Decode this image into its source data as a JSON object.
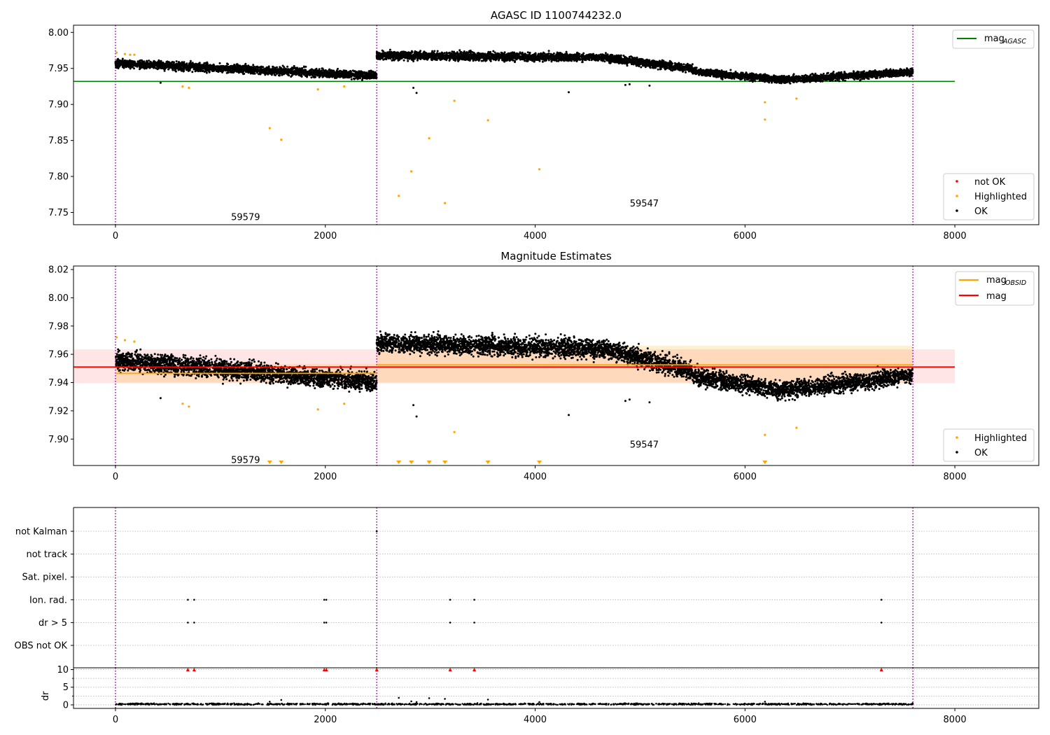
{
  "figure": {
    "background": "#ffffff"
  },
  "colors": {
    "ok": "#000000",
    "highlighted": "#ffa500",
    "not_ok": "#ff0000",
    "agasc_line": "#008000",
    "obsid_line": "#ffa500",
    "mag_line": "#ff0000",
    "obsid_band": "#ffa500",
    "mag_band": "#ff0000",
    "obs_boundary": "#800080",
    "grid": "#b0b0b0"
  },
  "chart_data": [
    {
      "type": "scatter",
      "title": "AGASC ID 1100744232.0",
      "xlim": [
        -400,
        8800
      ],
      "ylim": [
        7.733,
        8.01
      ],
      "xticks": [
        0,
        2000,
        4000,
        6000,
        8000
      ],
      "yticks": [
        7.75,
        7.8,
        7.85,
        7.9,
        7.95,
        8.0
      ],
      "ytick_labels": [
        "7.75",
        "7.80",
        "7.85",
        "7.90",
        "7.95",
        "8.00"
      ],
      "obs_boundaries": [
        0,
        2490,
        7600
      ],
      "annotations": [
        {
          "text": "59579",
          "x": 1240,
          "y": 7.744
        },
        {
          "text": "59547",
          "x": 5040,
          "y": 7.763
        }
      ],
      "reference_lines": [
        {
          "name": "mag_AGASC",
          "legend_text": "mag",
          "legend_sub": "AGASC",
          "y": 7.932,
          "x": [
            -400,
            8000
          ]
        }
      ],
      "ok_segments": [
        {
          "x": [
            0,
            2490
          ],
          "y_start": 7.957,
          "y_end": 7.94,
          "spread": 0.0055
        },
        {
          "x": [
            2490,
            4700
          ],
          "y_start": 7.968,
          "y_end": 7.965,
          "spread": 0.0055
        },
        {
          "x": [
            4700,
            5500
          ],
          "y_start": 7.964,
          "y_end": 7.95,
          "spread": 0.0055
        },
        {
          "x": [
            5500,
            6300
          ],
          "y_start": 7.946,
          "y_end": 7.935,
          "spread": 0.005
        },
        {
          "x": [
            6300,
            7600
          ],
          "y_start": 7.934,
          "y_end": 7.945,
          "spread": 0.005
        }
      ],
      "ok_outliers": [
        [
          430,
          7.93
        ],
        [
          2840,
          7.923
        ],
        [
          2870,
          7.916
        ],
        [
          4320,
          7.917
        ],
        [
          4860,
          7.927
        ],
        [
          4900,
          7.928
        ],
        [
          5090,
          7.926
        ]
      ],
      "highlighted_points": [
        [
          10,
          7.972
        ],
        [
          90,
          7.97
        ],
        [
          140,
          7.969
        ],
        [
          180,
          7.969
        ],
        [
          640,
          7.925
        ],
        [
          700,
          7.923
        ],
        [
          1470,
          7.867
        ],
        [
          1580,
          7.851
        ],
        [
          1930,
          7.921
        ],
        [
          2180,
          7.925
        ],
        [
          2700,
          7.773
        ],
        [
          2820,
          7.807
        ],
        [
          2990,
          7.853
        ],
        [
          3140,
          7.763
        ],
        [
          3230,
          7.905
        ],
        [
          3550,
          7.878
        ],
        [
          4040,
          7.81
        ],
        [
          6190,
          7.903
        ],
        [
          6190,
          7.879
        ],
        [
          6490,
          7.908
        ]
      ],
      "legend_upper": [
        {
          "label": "mag",
          "sub": "AGASC"
        }
      ],
      "legend_lower": [
        {
          "label": "not OK",
          "marker": "not_ok"
        },
        {
          "label": "Highlighted",
          "marker": "highlighted"
        },
        {
          "label": "OK",
          "marker": "ok"
        }
      ]
    },
    {
      "type": "scatter",
      "title": "Magnitude Estimates",
      "xlim": [
        -400,
        8800
      ],
      "ylim": [
        7.8813,
        8.0225
      ],
      "xticks": [
        0,
        2000,
        4000,
        6000,
        8000
      ],
      "yticks": [
        7.9,
        7.92,
        7.94,
        7.96,
        7.98,
        8.0,
        8.02
      ],
      "ytick_labels": [
        "7.90",
        "7.92",
        "7.94",
        "7.96",
        "7.98",
        "8.00",
        "8.02"
      ],
      "obs_boundaries": [
        0,
        2490,
        7600
      ],
      "annotations": [
        {
          "text": "59579",
          "x": 1240,
          "y": 7.8855
        },
        {
          "text": "59547",
          "x": 5040,
          "y": 7.8965
        }
      ],
      "bands": [
        {
          "name": "mag band",
          "x": [
            -400,
            8000
          ],
          "y": [
            7.9395,
            7.9635
          ],
          "color": "mag_band",
          "opacity": 0.1
        },
        {
          "name": "obsid band 1",
          "x": [
            0,
            2490
          ],
          "y": [
            7.94,
            7.953
          ],
          "color": "obsid_band",
          "opacity": 0.18
        },
        {
          "name": "obsid band 2",
          "x": [
            2490,
            7600
          ],
          "y": [
            7.94,
            7.966
          ],
          "color": "obsid_band",
          "opacity": 0.18
        }
      ],
      "reference_lines": [
        {
          "name": "mag",
          "y": 7.951,
          "x": [
            -400,
            8000
          ],
          "color": "mag_line"
        },
        {
          "name": "mag_OBSID 1",
          "y": 7.9465,
          "x": [
            0,
            2490
          ],
          "color": "obsid_line"
        },
        {
          "name": "mag_OBSID 2",
          "y": 7.9525,
          "x": [
            2490,
            7600
          ],
          "color": "obsid_line"
        }
      ],
      "ok_segments": [
        {
          "x": [
            0,
            2490
          ],
          "y_start": 7.956,
          "y_end": 7.94,
          "spread": 0.0065
        },
        {
          "x": [
            2490,
            4700
          ],
          "y_start": 7.968,
          "y_end": 7.964,
          "spread": 0.0065
        },
        {
          "x": [
            4700,
            5500
          ],
          "y_start": 7.963,
          "y_end": 7.948,
          "spread": 0.0065
        },
        {
          "x": [
            5500,
            6300
          ],
          "y_start": 7.945,
          "y_end": 7.935,
          "spread": 0.006
        },
        {
          "x": [
            6300,
            7600
          ],
          "y_start": 7.934,
          "y_end": 7.945,
          "spread": 0.006
        }
      ],
      "ok_outliers": [
        [
          430,
          7.929
        ],
        [
          2840,
          7.924
        ],
        [
          2870,
          7.916
        ],
        [
          4320,
          7.917
        ],
        [
          4860,
          7.927
        ],
        [
          4900,
          7.928
        ],
        [
          5090,
          7.926
        ]
      ],
      "highlighted_points": [
        [
          10,
          7.972
        ],
        [
          90,
          7.97
        ],
        [
          180,
          7.969
        ],
        [
          640,
          7.925
        ],
        [
          700,
          7.923
        ],
        [
          1930,
          7.921
        ],
        [
          2180,
          7.925
        ],
        [
          3230,
          7.905
        ],
        [
          6190,
          7.903
        ],
        [
          6490,
          7.908
        ]
      ],
      "off_scale_down": [
        1470,
        1580,
        2700,
        2820,
        2990,
        3140,
        3550,
        4040,
        6190
      ],
      "legend_upper": [
        {
          "label": "mag",
          "sub": "OBSID",
          "color": "obsid_line"
        },
        {
          "label": "mag",
          "color": "mag_line"
        }
      ],
      "legend_lower": [
        {
          "label": "Highlighted",
          "marker": "highlighted"
        },
        {
          "label": "OK",
          "marker": "ok"
        }
      ]
    },
    {
      "type": "scatter",
      "title": "",
      "xlim": [
        -400,
        8800
      ],
      "xticks": [
        0,
        2000,
        4000,
        6000,
        8000
      ],
      "obs_boundaries": [
        0,
        2490,
        7600
      ],
      "flag_rows": [
        "not Kalman",
        "not track",
        "Sat. pixel.",
        "Ion. rad.",
        "dr > 5",
        "OBS not OK"
      ],
      "flag_points": {
        "not Kalman": [
          2490
        ],
        "Ion. rad.": [
          690,
          750,
          1990,
          2010,
          3190,
          3420,
          7300
        ],
        "dr > 5": [
          690,
          750,
          1990,
          2010,
          3190,
          3420,
          7300
        ]
      },
      "dr_panel": {
        "ylabel": "dr",
        "ylim": [
          -1,
          10.5
        ],
        "yticks": [
          0,
          5,
          10
        ],
        "ytick_labels": [
          "0",
          "5",
          "10"
        ],
        "clipped_at": 10,
        "clipped_points": [
          690,
          750,
          1990,
          2010,
          2490,
          3190,
          3420,
          7300
        ],
        "baseline": {
          "x": [
            0,
            7600
          ],
          "value": 0.2
        },
        "outliers": [
          [
            1470,
            0.9
          ],
          [
            1580,
            1.4
          ],
          [
            2700,
            2.0
          ],
          [
            2820,
            1.0
          ],
          [
            2870,
            0.8
          ],
          [
            2990,
            1.9
          ],
          [
            3140,
            1.7
          ],
          [
            3550,
            1.5
          ],
          [
            4040,
            0.8
          ],
          [
            6190,
            0.9
          ]
        ]
      }
    }
  ]
}
